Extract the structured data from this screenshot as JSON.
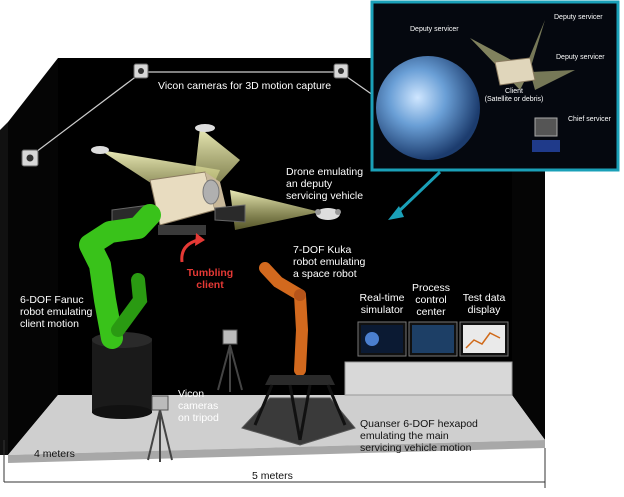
{
  "labels": {
    "vicon_cameras": "Vicon cameras for 3D motion capture",
    "drone": "Drone emulating\nan deputy\nservicing vehicle",
    "tumbling": "Tumbling\nclient",
    "kuka": "7-DOF Kuka\nrobot emulating\na space robot",
    "fanuc": "6-DOF Fanuc\nrobot emulating\nclient motion",
    "realtime": "Real-time\nsimulator",
    "process": "Process\ncontrol\ncenter",
    "testdata": "Test data\ndisplay",
    "vicon_tripod": "Vicon\ncameras\non tripod",
    "hexapod": "Quanser 6-DOF hexapod\nemulating the main\nservicing vehicle motion",
    "width_4m": "4 meters",
    "width_5m": "5 meters"
  },
  "inset": {
    "deputy1": "Deputy servicer",
    "deputy2": "Deputy servicer",
    "deputy3": "Deputy servicer",
    "client": "Client\n(Satellite or debris)",
    "chief": "Chief servicer"
  },
  "colors": {
    "room": "#000000",
    "floor": "#cfcfcf",
    "fanuc_arm": "#39c21a",
    "kuka_arm": "#d2691e",
    "inset_border": "#1aa0b8",
    "arrow": "#1aa0b8",
    "tumbling": "#e53935",
    "cone": "#e8e8a0"
  }
}
